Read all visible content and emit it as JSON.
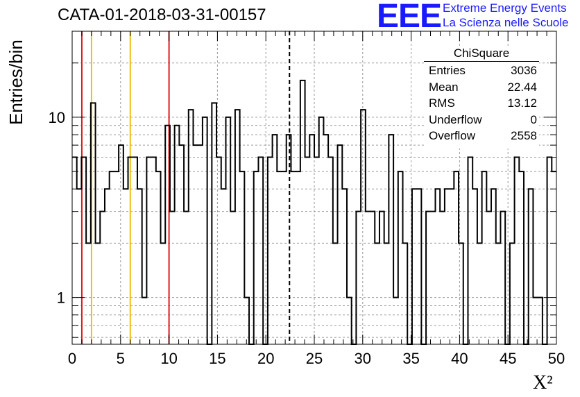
{
  "header": {
    "title": "CATA-01-2018-03-31-00157",
    "logo_text": "EEE",
    "logo_line1": "Extreme Energy Events",
    "logo_line2": "La Scienza nelle Scuole"
  },
  "stats_box": {
    "title": "ChiSquare",
    "rows": [
      {
        "label": "Entries",
        "value": "3036"
      },
      {
        "label": "Mean",
        "value": "22.44"
      },
      {
        "label": "RMS",
        "value": "13.12"
      },
      {
        "label": "Underflow",
        "value": "0"
      },
      {
        "label": "Overflow",
        "value": "2558"
      }
    ]
  },
  "chart_data": {
    "type": "histogram",
    "title": "CATA-01-2018-03-31-00157",
    "xlabel": "X²",
    "ylabel": "Entries/bin",
    "xlim": [
      0,
      50
    ],
    "ylim": [
      0.55,
      30
    ],
    "yscale": "log",
    "grid": true,
    "bin_width": 1,
    "x_ticks": [
      "0",
      "5",
      "10",
      "15",
      "20",
      "25",
      "30",
      "35",
      "40",
      "45",
      "50"
    ],
    "y_ticks": [
      "1",
      "10"
    ],
    "bin_values": [
      6,
      4,
      6,
      2,
      12,
      2,
      3,
      4,
      5,
      5,
      7,
      4,
      6,
      6,
      4,
      1,
      6,
      6,
      5,
      2,
      9,
      3,
      9,
      7,
      3,
      11,
      7,
      7,
      10,
      0,
      12,
      6,
      4,
      10,
      3,
      11,
      5,
      1,
      0,
      5,
      6,
      0,
      6,
      8,
      5,
      5,
      8,
      5,
      5,
      16,
      6,
      8,
      6,
      10,
      8,
      6,
      2,
      7,
      4,
      1,
      0,
      3,
      11,
      3,
      3,
      2,
      3,
      2,
      8,
      1,
      5,
      2,
      0,
      4,
      4,
      0,
      3,
      3,
      4,
      3,
      4,
      4,
      5,
      2,
      0,
      6,
      4,
      2,
      5,
      3,
      4,
      2,
      3,
      0,
      2,
      6,
      5,
      0,
      4,
      1,
      1,
      0,
      6,
      5
    ],
    "vertical_lines": [
      {
        "x": 1,
        "color": "#e0191b",
        "style": "solid"
      },
      {
        "x": 2,
        "color": "#f2bf12",
        "style": "solid"
      },
      {
        "x": 6,
        "color": "#f2bf12",
        "style": "solid"
      },
      {
        "x": 10,
        "color": "#e0191b",
        "style": "solid"
      },
      {
        "x": 22.44,
        "color": "#000000",
        "style": "dashed"
      }
    ]
  }
}
